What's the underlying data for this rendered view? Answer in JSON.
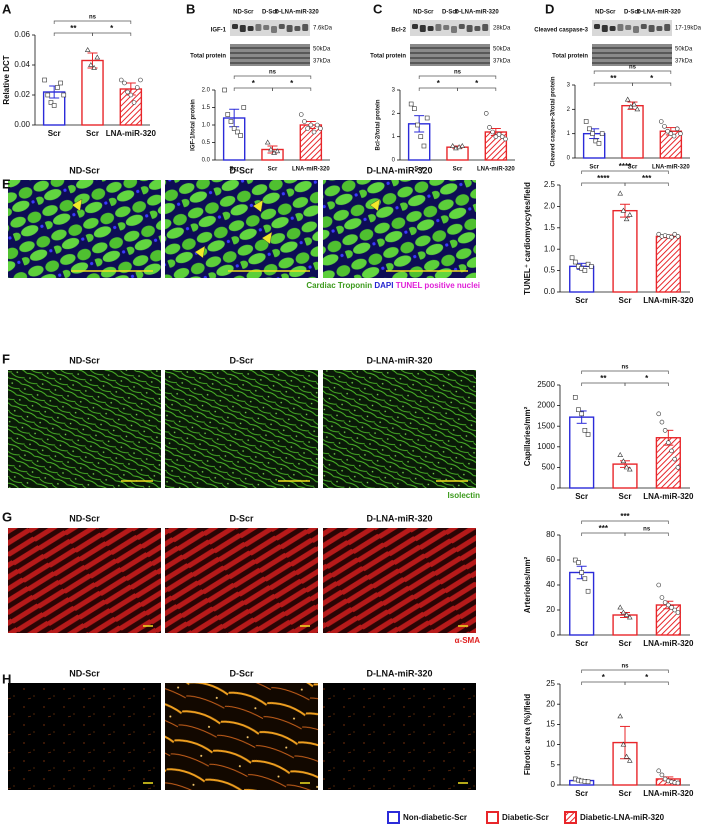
{
  "chart_data": [
    {
      "type": "bar",
      "panel": "A",
      "ylabel": "Relative DCT",
      "categories": [
        "Scr",
        "Scr",
        "LNA-miR-320"
      ],
      "values": [
        0.022,
        0.043,
        0.024
      ],
      "errors": [
        0.004,
        0.005,
        0.004
      ],
      "points": [
        [
          0.03,
          0.02,
          0.015,
          0.013,
          0.025,
          0.028,
          0.02
        ],
        [
          0.05,
          0.04,
          0.038,
          0.045
        ],
        [
          0.03,
          0.028,
          0.022,
          0.02,
          0.015,
          0.025,
          0.03
        ]
      ],
      "ylim": [
        0,
        0.06
      ],
      "yticks": [
        {
          "value": 0,
          "label": "0.00"
        },
        0.02,
        0.04,
        0.06
      ],
      "comparisons": [
        {
          "label": "ns",
          "groups": [
            0,
            2
          ]
        },
        {
          "label": "**",
          "groups": [
            0,
            1
          ]
        },
        {
          "label": "*",
          "groups": [
            1,
            2
          ]
        }
      ]
    },
    {
      "type": "bar",
      "panel": "B",
      "ylabel": "IGF-1/total protein",
      "categories": [
        "Scr",
        "Scr",
        "LNA-miR-320"
      ],
      "values": [
        1.2,
        0.3,
        1.0
      ],
      "errors": [
        0.25,
        0.1,
        0.1
      ],
      "points": [
        [
          2.0,
          1.3,
          1.1,
          0.9,
          0.8,
          0.7,
          1.5
        ],
        [
          0.5,
          0.3,
          0.2,
          0.25
        ],
        [
          1.3,
          1.1,
          0.9,
          1.0,
          0.8,
          1.0,
          0.9
        ]
      ],
      "ylim": [
        0,
        2
      ],
      "yticks": [
        {
          "value": 0,
          "label": "0.0"
        },
        0.5,
        {
          "value": 1,
          "label": "1.0"
        },
        1.5,
        {
          "value": 2,
          "label": "2.0"
        }
      ],
      "comparisons": [
        {
          "label": "ns",
          "groups": [
            0,
            2
          ]
        },
        {
          "label": "*",
          "groups": [
            0,
            1
          ]
        },
        {
          "label": "*",
          "groups": [
            1,
            2
          ]
        }
      ]
    },
    {
      "type": "bar",
      "panel": "C",
      "ylabel": "Bcl-2/total protein",
      "categories": [
        "Scr",
        "Scr",
        "LNA-miR-320"
      ],
      "values": [
        1.55,
        0.55,
        1.2
      ],
      "errors": [
        0.35,
        0.05,
        0.15
      ],
      "points": [
        [
          2.4,
          2.2,
          1.5,
          1.0,
          0.6,
          1.8
        ],
        [
          0.6,
          0.5,
          0.55,
          0.6
        ],
        [
          2.0,
          1.4,
          1.2,
          1.0,
          1.1,
          1.0,
          0.9
        ]
      ],
      "ylim": [
        0,
        3
      ],
      "yticks": [
        0,
        1,
        2,
        3
      ],
      "comparisons": [
        {
          "label": "ns",
          "groups": [
            0,
            2
          ]
        },
        {
          "label": "*",
          "groups": [
            0,
            1
          ]
        },
        {
          "label": "*",
          "groups": [
            1,
            2
          ]
        }
      ]
    },
    {
      "type": "bar",
      "panel": "D",
      "ylabel": "Cleaved caspase-3/total protein",
      "categories": [
        "Scr",
        "Scr",
        "LNA-miR-320"
      ],
      "values": [
        1.0,
        2.15,
        1.1
      ],
      "errors": [
        0.2,
        0.15,
        0.15
      ],
      "points": [
        [
          1.5,
          1.2,
          1.0,
          0.7,
          0.6,
          1.0
        ],
        [
          2.4,
          2.1,
          2.2,
          2.0
        ],
        [
          1.5,
          1.3,
          1.1,
          1.0,
          0.9,
          1.2,
          1.0
        ]
      ],
      "ylim": [
        0,
        3
      ],
      "yticks": [
        0,
        1,
        2,
        3
      ],
      "comparisons": [
        {
          "label": "ns",
          "groups": [
            0,
            2
          ]
        },
        {
          "label": "**",
          "groups": [
            0,
            1
          ]
        },
        {
          "label": "*",
          "groups": [
            1,
            2
          ]
        }
      ]
    },
    {
      "type": "bar",
      "panel": "E",
      "ylabel": "TUNEL⁺ cardiomyocytes/field",
      "categories": [
        "Scr",
        "Scr",
        "LNA-miR-320"
      ],
      "values": [
        0.6,
        1.9,
        1.3
      ],
      "errors": [
        0.07,
        0.15,
        0.03
      ],
      "points": [
        [
          0.8,
          0.7,
          0.6,
          0.55,
          0.5,
          0.65,
          0.6
        ],
        [
          2.3,
          1.9,
          1.7,
          1.8
        ],
        [
          1.35,
          1.3,
          1.32,
          1.3,
          1.28,
          1.35,
          1.3
        ]
      ],
      "ylim": [
        0,
        2.5
      ],
      "yticks": [
        {
          "value": 0,
          "label": "0.0"
        },
        0.5,
        {
          "value": 1,
          "label": "1.0"
        },
        1.5,
        {
          "value": 2,
          "label": "2.0"
        },
        2.5
      ],
      "comparisons": [
        {
          "label": "****",
          "groups": [
            0,
            2
          ]
        },
        {
          "label": "****",
          "groups": [
            0,
            1
          ]
        },
        {
          "label": "***",
          "groups": [
            1,
            2
          ]
        }
      ]
    },
    {
      "type": "bar",
      "panel": "F",
      "ylabel": "Capillaries/mm²",
      "categories": [
        "Scr",
        "Scr",
        "LNA-miR-320"
      ],
      "values": [
        1720,
        580,
        1220
      ],
      "errors": [
        150,
        80,
        180
      ],
      "points": [
        [
          2200,
          1900,
          1800,
          1400,
          1300
        ],
        [
          800,
          650,
          500,
          450
        ],
        [
          1800,
          1600,
          1400,
          1100,
          900,
          700,
          500
        ]
      ],
      "ylim": [
        0,
        2500
      ],
      "yticks": [
        0,
        500,
        1000,
        1500,
        2000,
        2500
      ],
      "comparisons": [
        {
          "label": "ns",
          "groups": [
            0,
            2
          ]
        },
        {
          "label": "**",
          "groups": [
            0,
            1
          ]
        },
        {
          "label": "*",
          "groups": [
            1,
            2
          ]
        }
      ]
    },
    {
      "type": "bar",
      "panel": "G",
      "ylabel": "Arterioles/mm²",
      "categories": [
        "Scr",
        "Scr",
        "LNA-miR-320"
      ],
      "values": [
        50,
        16,
        24
      ],
      "errors": [
        5,
        2,
        3
      ],
      "points": [
        [
          60,
          58,
          50,
          45,
          35
        ],
        [
          22,
          18,
          16,
          14
        ],
        [
          40,
          30,
          26,
          24,
          22,
          20,
          18
        ]
      ],
      "ylim": [
        0,
        80
      ],
      "yticks": [
        0,
        20,
        40,
        60,
        80
      ],
      "comparisons": [
        {
          "label": "***",
          "groups": [
            0,
            2
          ]
        },
        {
          "label": "***",
          "groups": [
            0,
            1
          ]
        },
        {
          "label": "ns",
          "groups": [
            1,
            2
          ]
        }
      ]
    },
    {
      "type": "bar",
      "panel": "H",
      "ylabel": "Fibrotic area (%)/field",
      "categories": [
        "Scr",
        "Scr",
        "LNA-miR-320"
      ],
      "values": [
        1.1,
        10.5,
        1.5
      ],
      "errors": [
        0.2,
        4,
        0.5
      ],
      "points": [
        [
          1.5,
          1.2,
          1.0,
          0.9,
          0.8
        ],
        [
          17,
          10,
          7,
          6
        ],
        [
          3.5,
          2.5,
          1.5,
          1.0,
          0.8,
          0.6,
          0.5
        ]
      ],
      "ylim": [
        0,
        25
      ],
      "yticks": [
        0,
        5,
        10,
        15,
        20,
        25
      ],
      "comparisons": [
        {
          "label": "ns",
          "groups": [
            0,
            2
          ]
        },
        {
          "label": "*",
          "groups": [
            0,
            1
          ]
        },
        {
          "label": "*",
          "groups": [
            1,
            2
          ]
        }
      ]
    }
  ],
  "blots": [
    {
      "lanes": [
        "ND-Scr",
        "D-Scr",
        "D-LNA-miR-320"
      ],
      "protein": "IGF-1",
      "kda": "7.6kDa",
      "total": "Total protein",
      "total_kda": [
        "50kDa",
        "37kDa"
      ]
    },
    {
      "lanes": [
        "ND-Scr",
        "D-Scr",
        "D-LNA-miR-320"
      ],
      "protein": "Bcl-2",
      "kda": "28kDa",
      "total": "Total protein",
      "total_kda": [
        "50kDa",
        "37kDa"
      ]
    },
    {
      "lanes": [
        "ND-Scr",
        "D-Scr",
        "D-LNA-miR-320"
      ],
      "protein": "Cleaved caspase-3",
      "kda": "17-19kDa",
      "total": "Total protein",
      "total_kda": [
        "50kDa",
        "37kDa"
      ]
    }
  ],
  "image_rows": [
    {
      "titles": [
        "ND-Scr",
        "D-Scr",
        "D-LNA-miR-320"
      ],
      "caption": [
        {
          "text": "Cardiac Troponin",
          "color": "#3c9a1c"
        },
        {
          "text": "DAPI",
          "color": "#2424d0"
        },
        {
          "text": "TUNEL positive nuclei",
          "color": "#e020d8"
        }
      ]
    },
    {
      "titles": [
        "ND-Scr",
        "D-Scr",
        "D-LNA-miR-320"
      ],
      "caption": [
        {
          "text": "Isolectin",
          "color": "#3c9a1c"
        }
      ]
    },
    {
      "titles": [
        "ND-Scr",
        "D-Scr",
        "D-LNA-miR-320"
      ],
      "caption": [
        {
          "text": "α-SMA",
          "color": "#e02020"
        }
      ]
    },
    {
      "titles": [
        "ND-Scr",
        "D-Scr",
        "D-LNA-miR-320"
      ],
      "caption": []
    }
  ],
  "legend": [
    {
      "label": "Non-diabetic-Scr",
      "color": "#2b2bd9",
      "hatched": false
    },
    {
      "label": "Diabetic-Scr",
      "color": "#e8262a",
      "hatched": false
    },
    {
      "label": "Diabetic-LNA-miR-320",
      "color": "#e8262a",
      "hatched": true
    }
  ]
}
